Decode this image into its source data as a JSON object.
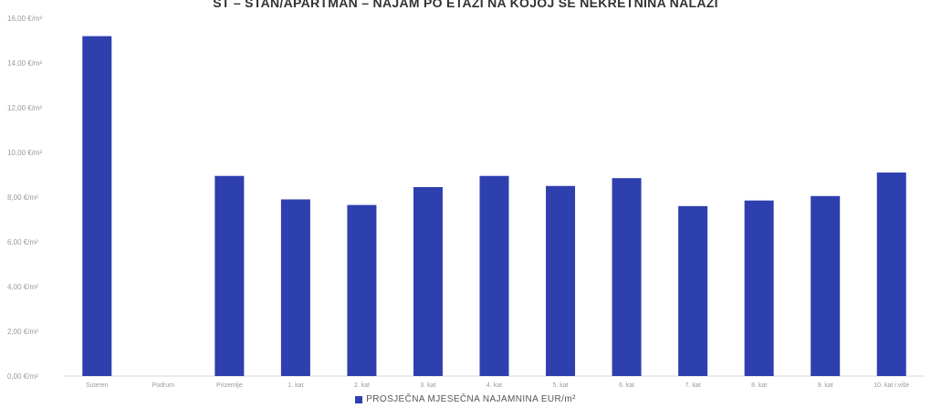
{
  "chart_data": {
    "type": "bar",
    "title": "ST – STAN/APARTMAN – NAJAM PO ETAŽI NA KOJOJ SE NEKRETNINA NALAZI",
    "xlabel": "",
    "ylabel": "",
    "ylim": [
      0,
      16
    ],
    "yticks": [
      0,
      2,
      4,
      6,
      8,
      10,
      12,
      14,
      16
    ],
    "ytick_labels": [
      "0,00 €/m²",
      "2,00 €/m²",
      "4,00 €/m²",
      "6,00 €/m²",
      "8,00 €/m²",
      "10,00 €/m²",
      "12,00 €/m²",
      "14,00 €/m²",
      "16,00 €/m²"
    ],
    "categories": [
      "Suteren",
      "Podrum",
      "Prizemlje",
      "1. kat",
      "2. kat",
      "3. kat",
      "4. kat",
      "5. kat",
      "6. kat",
      "7. kat",
      "8. kat",
      "9. kat",
      "10. kat i više"
    ],
    "series": [
      {
        "name": "PROSJEČNA MJESEČNA NAJAMNINA EUR/m²",
        "values": [
          15.2,
          null,
          8.95,
          7.9,
          7.65,
          8.45,
          8.95,
          8.5,
          8.85,
          7.6,
          7.85,
          8.05,
          9.1
        ]
      }
    ],
    "grid": false,
    "legend_position": "bottom-center",
    "colors": {
      "bar": "#2e3fae",
      "axis": "#d9d9d9",
      "tick_text": "#9a9a9a"
    }
  }
}
